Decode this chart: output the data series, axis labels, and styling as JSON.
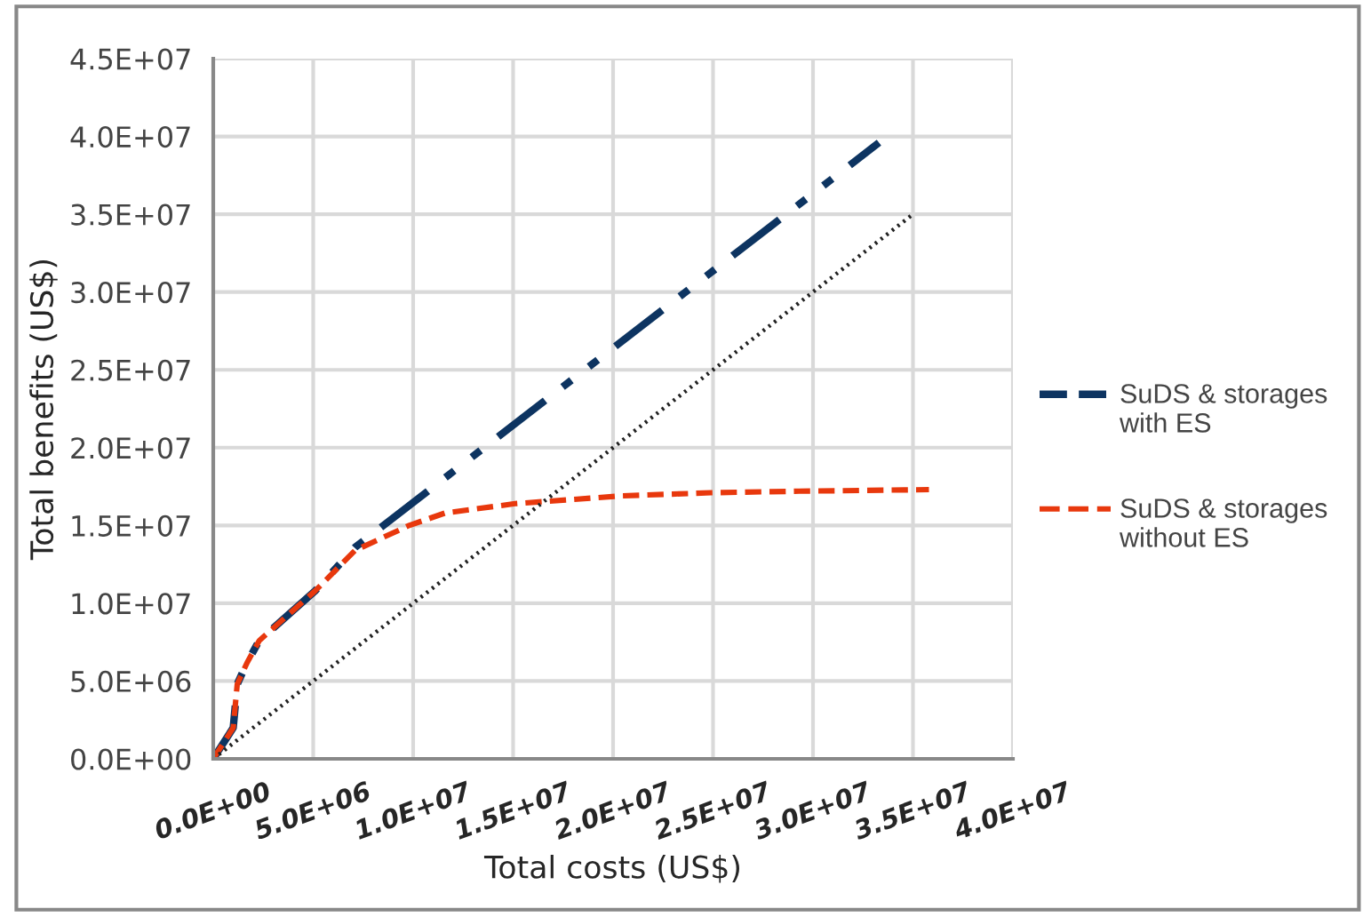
{
  "chart_data": {
    "type": "line",
    "xlabel": "Total costs (US$)",
    "ylabel": "Total benefits (US$)",
    "xlim": [
      0,
      40000000
    ],
    "ylim": [
      0,
      45000000
    ],
    "xticks": [
      {
        "value": 0,
        "label": "0.0E+00"
      },
      {
        "value": 5000000,
        "label": "5.0E+06"
      },
      {
        "value": 10000000,
        "label": "1.0E+07"
      },
      {
        "value": 15000000,
        "label": "1.5E+07"
      },
      {
        "value": 20000000,
        "label": "2.0E+07"
      },
      {
        "value": 25000000,
        "label": "2.5E+07"
      },
      {
        "value": 30000000,
        "label": "3.0E+07"
      },
      {
        "value": 35000000,
        "label": "3.5E+07"
      },
      {
        "value": 40000000,
        "label": "4.0E+07"
      }
    ],
    "yticks": [
      {
        "value": 0,
        "label": "0.0E+00"
      },
      {
        "value": 5000000,
        "label": "5.0E+06"
      },
      {
        "value": 10000000,
        "label": "1.0E+07"
      },
      {
        "value": 15000000,
        "label": "1.5E+07"
      },
      {
        "value": 20000000,
        "label": "2.0E+07"
      },
      {
        "value": 25000000,
        "label": "2.5E+07"
      },
      {
        "value": 30000000,
        "label": "3.0E+07"
      },
      {
        "value": 35000000,
        "label": "3.5E+07"
      },
      {
        "value": 40000000,
        "label": "4.0E+07"
      },
      {
        "value": 45000000,
        "label": "4.5E+07"
      }
    ],
    "grid": true,
    "legend": "right",
    "series": [
      {
        "name": "SuDS & storages with ES",
        "color": "#0d3461",
        "line_style": "dashdot",
        "x": [
          0,
          1000000,
          1200000,
          1700000,
          2300000,
          5100000,
          7100000,
          33300000
        ],
        "values": [
          0,
          2000000,
          4800000,
          6200000,
          7600000,
          10800000,
          13600000,
          39600000
        ]
      },
      {
        "name": "SuDS & storages without ES",
        "color": "#e8380d",
        "line_style": "dashed",
        "x": [
          0,
          1000000,
          1200000,
          1700000,
          2300000,
          5100000,
          7100000,
          9800000,
          11600000,
          15100000,
          20400000,
          24900000,
          29300000,
          35800000
        ],
        "values": [
          0,
          2000000,
          4800000,
          6200000,
          7600000,
          10800000,
          13400000,
          15000000,
          15800000,
          16400000,
          16900000,
          17100000,
          17200000,
          17300000
        ]
      },
      {
        "color": "#222222",
        "line_style": "dotted",
        "x": [
          0,
          35000000
        ],
        "values": [
          0,
          35000000
        ]
      }
    ]
  }
}
